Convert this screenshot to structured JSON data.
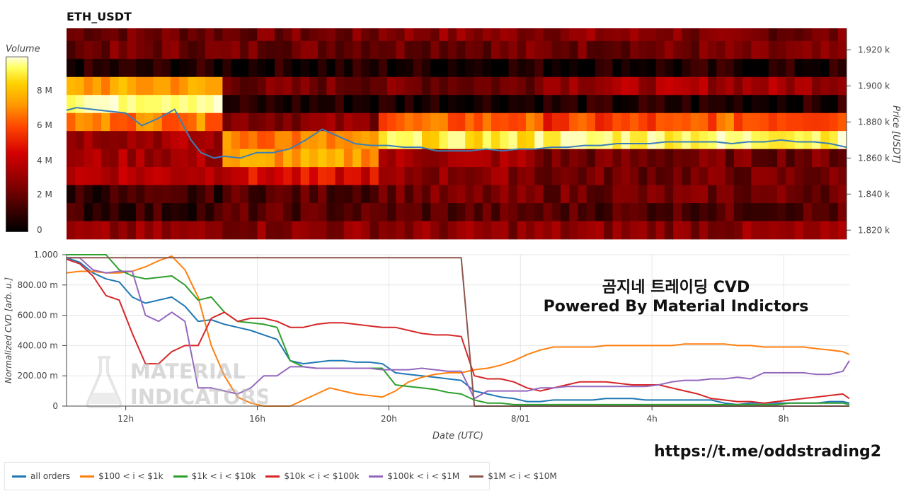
{
  "header": {
    "title": "ETH_USDT"
  },
  "colorbar": {
    "title": "Volume",
    "ticks": [
      "8 M",
      "6 M",
      "4 M",
      "2 M",
      "0"
    ]
  },
  "overlay": {
    "line1": "곰지네 트레이딩 CVD",
    "line2": "Powered By Material Indictors",
    "url": "https://t.me/oddstrading2"
  },
  "watermark": {
    "line1": "MATERIAL",
    "line2": "INDICATORS",
    "icon": "flask-icon"
  },
  "chart_data": [
    {
      "type": "heatmap",
      "title": "ETH_USDT",
      "ylabel": "Price [USDT]",
      "ylim": [
        1815,
        1932
      ],
      "yticks": [
        "1.920 k",
        "1.900 k",
        "1.880 k",
        "1.860 k",
        "1.840 k",
        "1.820 k"
      ],
      "yticks_values": [
        1920,
        1900,
        1880,
        1860,
        1840,
        1820
      ],
      "grid": false,
      "price_line": {
        "color": "#3b7fb6",
        "x": [
          10.2,
          10.5,
          11,
          11.5,
          12,
          12.5,
          13,
          13.5,
          14,
          14.3,
          14.7,
          15,
          15.5,
          16,
          16.5,
          17,
          17.5,
          18,
          18.5,
          19,
          19.5,
          20,
          20.5,
          21,
          21.5,
          22,
          22.5,
          23,
          23.5,
          24,
          24.5,
          25,
          25.5,
          26,
          26.5,
          27,
          27.5,
          28,
          28.5,
          29,
          29.5,
          30,
          30.5,
          31,
          31.5,
          32,
          32.5,
          33,
          33.5,
          34
        ],
        "y": [
          1886.5,
          1888,
          1887,
          1886,
          1885,
          1878,
          1882,
          1887,
          1870,
          1863,
          1860,
          1861,
          1860,
          1863,
          1863,
          1865,
          1870,
          1876,
          1872,
          1868,
          1867,
          1867,
          1866,
          1866,
          1864,
          1864,
          1864,
          1865,
          1864,
          1865,
          1865,
          1866,
          1866,
          1867,
          1867,
          1868,
          1868,
          1868,
          1869,
          1869,
          1869,
          1869,
          1868,
          1869,
          1869,
          1870,
          1869,
          1869,
          1868,
          1866
        ]
      },
      "bands": [
        {
          "price_range": [
            1925,
            1932
          ],
          "volume": [
            2.0,
            2.0,
            2.5,
            2.5,
            2.0
          ]
        },
        {
          "price_range": [
            1915,
            1925
          ],
          "volume": [
            2.0,
            2.0,
            2.0,
            2.0,
            2.0
          ]
        },
        {
          "price_range": [
            1905,
            1915
          ],
          "volume": [
            0.5,
            0.5,
            0.5,
            0.5,
            0.5
          ]
        },
        {
          "price_range": [
            1895,
            1905
          ],
          "volume": [
            6.5,
            2.0,
            2.0,
            3.0,
            3.0
          ]
        },
        {
          "price_range": [
            1885,
            1895
          ],
          "volume": [
            9.0,
            0.5,
            0.5,
            0.5,
            0.5
          ]
        },
        {
          "price_range": [
            1875,
            1885
          ],
          "volume": [
            6.0,
            2.5,
            5.5,
            5.0,
            5.5
          ]
        },
        {
          "price_range": [
            1865,
            1875
          ],
          "volume": [
            3.0,
            6.0,
            8.0,
            8.5,
            8.5
          ]
        },
        {
          "price_range": [
            1855,
            1865
          ],
          "volume": [
            3.0,
            6.5,
            3.0,
            2.0,
            2.0
          ]
        },
        {
          "price_range": [
            1845,
            1855
          ],
          "volume": [
            3.5,
            4.0,
            2.5,
            2.0,
            2.0
          ]
        },
        {
          "price_range": [
            1835,
            1845
          ],
          "volume": [
            1.0,
            1.5,
            2.0,
            2.0,
            2.0
          ]
        },
        {
          "price_range": [
            1825,
            1835
          ],
          "volume": [
            1.0,
            1.5,
            1.5,
            1.5,
            1.5
          ]
        },
        {
          "price_range": [
            1815,
            1825
          ],
          "volume": [
            2.5,
            2.5,
            2.5,
            2.5,
            2.5
          ]
        }
      ]
    },
    {
      "type": "line",
      "xlabel": "Date (UTC)",
      "ylabel": "Normalized CVD [arb. u.]",
      "xlim": [
        10.2,
        34
      ],
      "ylim": [
        0,
        1
      ],
      "xticks": [
        "12h",
        "16h",
        "20h",
        "8/01",
        "4h",
        "8h"
      ],
      "xticks_values": [
        12,
        16,
        20,
        24,
        28,
        32
      ],
      "yticks": [
        "1.000",
        "800.00 m",
        "600.00 m",
        "400.00 m",
        "200.00 m",
        "0"
      ],
      "yticks_values": [
        1.0,
        0.8,
        0.6,
        0.4,
        0.2,
        0.0
      ],
      "grid": true,
      "legend_position": "bottom",
      "x": [
        10.2,
        10.6,
        11,
        11.4,
        11.8,
        12.2,
        12.6,
        13,
        13.4,
        13.8,
        14.2,
        14.6,
        15,
        15.4,
        15.8,
        16.2,
        16.6,
        17,
        17.4,
        17.8,
        18.2,
        18.6,
        19,
        19.4,
        19.8,
        20.2,
        20.6,
        21,
        21.4,
        21.8,
        22.2,
        22.6,
        23,
        23.4,
        23.8,
        24.2,
        24.6,
        25,
        25.4,
        25.8,
        26.2,
        26.6,
        27,
        27.4,
        27.8,
        28.2,
        28.6,
        29,
        29.4,
        29.8,
        30.2,
        30.6,
        31,
        31.4,
        31.8,
        32.2,
        32.6,
        33,
        33.4,
        33.8,
        34
      ],
      "series": [
        {
          "name": "all orders",
          "color": "#1f77b4",
          "values": [
            0.98,
            0.95,
            0.88,
            0.84,
            0.82,
            0.72,
            0.68,
            0.7,
            0.72,
            0.66,
            0.56,
            0.57,
            0.54,
            0.52,
            0.5,
            0.47,
            0.44,
            0.3,
            0.28,
            0.29,
            0.3,
            0.3,
            0.29,
            0.29,
            0.28,
            0.22,
            0.21,
            0.2,
            0.19,
            0.18,
            0.17,
            0.1,
            0.08,
            0.06,
            0.05,
            0.03,
            0.03,
            0.04,
            0.04,
            0.04,
            0.04,
            0.05,
            0.05,
            0.05,
            0.04,
            0.04,
            0.04,
            0.04,
            0.04,
            0.04,
            0.02,
            0.01,
            0.02,
            0.02,
            0.02,
            0.02,
            0.02,
            0.02,
            0.03,
            0.03,
            0.02
          ]
        },
        {
          "name": "$100 < i < $1k",
          "color": "#ff7f0e",
          "values": [
            0.88,
            0.89,
            0.89,
            0.88,
            0.88,
            0.89,
            0.92,
            0.96,
            0.99,
            0.9,
            0.72,
            0.4,
            0.2,
            0.06,
            0.02,
            0.0,
            0.0,
            0.0,
            0.04,
            0.08,
            0.12,
            0.1,
            0.08,
            0.07,
            0.06,
            0.1,
            0.16,
            0.19,
            0.21,
            0.22,
            0.22,
            0.24,
            0.25,
            0.27,
            0.3,
            0.34,
            0.37,
            0.39,
            0.39,
            0.39,
            0.39,
            0.4,
            0.4,
            0.4,
            0.4,
            0.4,
            0.4,
            0.41,
            0.41,
            0.41,
            0.41,
            0.4,
            0.4,
            0.39,
            0.39,
            0.39,
            0.39,
            0.38,
            0.37,
            0.36,
            0.34
          ]
        },
        {
          "name": "$1k < i < $10k",
          "color": "#2ca02c",
          "values": [
            1.0,
            1.0,
            1.0,
            1.0,
            0.9,
            0.86,
            0.84,
            0.85,
            0.86,
            0.8,
            0.7,
            0.72,
            0.62,
            0.56,
            0.55,
            0.54,
            0.52,
            0.3,
            0.26,
            0.25,
            0.25,
            0.25,
            0.25,
            0.25,
            0.25,
            0.14,
            0.13,
            0.12,
            0.11,
            0.09,
            0.08,
            0.04,
            0.02,
            0.02,
            0.01,
            0.01,
            0.01,
            0.01,
            0.01,
            0.01,
            0.01,
            0.01,
            0.01,
            0.01,
            0.01,
            0.01,
            0.01,
            0.01,
            0.01,
            0.01,
            0.01,
            0.01,
            0.01,
            0.01,
            0.01,
            0.02,
            0.02,
            0.02,
            0.02,
            0.02,
            0.01
          ]
        },
        {
          "name": "$10k < i < $100k",
          "color": "#d62728",
          "values": [
            0.97,
            0.94,
            0.86,
            0.73,
            0.7,
            0.48,
            0.28,
            0.28,
            0.36,
            0.4,
            0.4,
            0.58,
            0.62,
            0.56,
            0.58,
            0.58,
            0.56,
            0.52,
            0.52,
            0.54,
            0.55,
            0.55,
            0.54,
            0.53,
            0.52,
            0.52,
            0.5,
            0.48,
            0.47,
            0.47,
            0.46,
            0.2,
            0.18,
            0.18,
            0.16,
            0.12,
            0.1,
            0.12,
            0.14,
            0.16,
            0.16,
            0.16,
            0.15,
            0.14,
            0.14,
            0.14,
            0.12,
            0.1,
            0.08,
            0.05,
            0.04,
            0.03,
            0.03,
            0.02,
            0.03,
            0.04,
            0.05,
            0.06,
            0.07,
            0.08,
            0.05
          ]
        },
        {
          "name": "$100k < i < $1M",
          "color": "#9467bd",
          "values": [
            0.98,
            0.98,
            0.9,
            0.88,
            0.89,
            0.89,
            0.6,
            0.56,
            0.62,
            0.56,
            0.12,
            0.12,
            0.1,
            0.08,
            0.12,
            0.2,
            0.2,
            0.26,
            0.26,
            0.25,
            0.25,
            0.25,
            0.25,
            0.25,
            0.24,
            0.24,
            0.24,
            0.25,
            0.24,
            0.23,
            0.23,
            0.05,
            0.1,
            0.1,
            0.1,
            0.1,
            0.12,
            0.12,
            0.13,
            0.13,
            0.13,
            0.13,
            0.13,
            0.13,
            0.13,
            0.14,
            0.16,
            0.17,
            0.17,
            0.18,
            0.18,
            0.19,
            0.18,
            0.22,
            0.22,
            0.22,
            0.22,
            0.21,
            0.21,
            0.23,
            0.3
          ]
        },
        {
          "name": "$1M < i < $10M",
          "color": "#8c564b",
          "values": [
            0.98,
            0.98,
            0.98,
            0.98,
            0.98,
            0.98,
            0.98,
            0.98,
            0.98,
            0.98,
            0.98,
            0.98,
            0.98,
            0.98,
            0.98,
            0.98,
            0.98,
            0.98,
            0.98,
            0.98,
            0.98,
            0.98,
            0.98,
            0.98,
            0.98,
            0.98,
            0.98,
            0.98,
            0.98,
            0.98,
            0.98,
            0.0,
            0.0,
            0.0,
            0.0,
            0.0,
            0.0,
            0.0,
            0.0,
            0.0,
            0.0,
            0.0,
            0.0,
            0.0,
            0.0,
            0.0,
            0.0,
            0.0,
            0.0,
            0.0,
            0.0,
            0.0,
            0.0,
            0.0,
            0.0,
            0.0,
            0.0,
            0.0,
            0.0,
            0.0,
            0.0
          ]
        }
      ]
    }
  ]
}
